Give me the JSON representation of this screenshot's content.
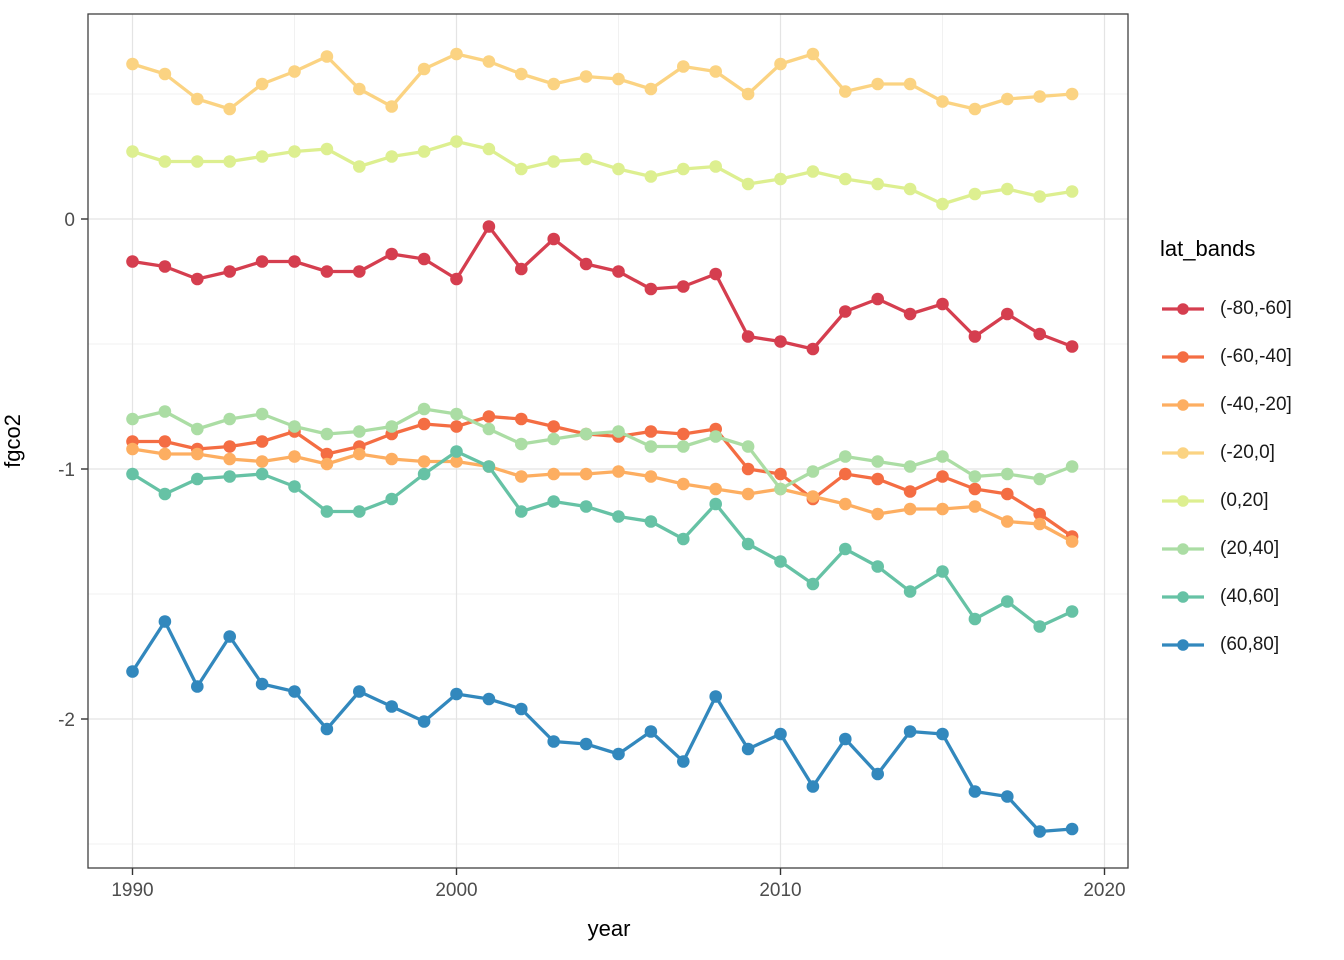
{
  "chart_data": {
    "type": "line",
    "title": "",
    "x_label": "year",
    "y_label": "fgco2",
    "legend_title": "lat_bands",
    "legend_position": "right",
    "grid": true,
    "years": [
      1990,
      1991,
      1992,
      1993,
      1994,
      1995,
      1996,
      1997,
      1998,
      1999,
      2000,
      2001,
      2002,
      2003,
      2004,
      2005,
      2006,
      2007,
      2008,
      2009,
      2010,
      2011,
      2012,
      2013,
      2014,
      2015,
      2016,
      2017,
      2018,
      2019
    ],
    "axis": {
      "x_major": [
        1990,
        2000,
        2010,
        2020
      ],
      "x_minor": [
        1995,
        2005,
        2015
      ],
      "y_major": [
        0,
        -1,
        -2
      ],
      "y_minor": [
        0.5,
        -0.5,
        -1.5,
        -2.5
      ],
      "xlim": [
        1988.6,
        2020.8
      ],
      "ylim": [
        -2.6,
        0.82
      ]
    },
    "series": [
      {
        "name": "(-80,-60]",
        "color": "#d53e4f",
        "values": [
          -0.17,
          -0.19,
          -0.24,
          -0.21,
          -0.17,
          -0.17,
          -0.21,
          -0.21,
          -0.14,
          -0.16,
          -0.24,
          -0.03,
          -0.2,
          -0.08,
          -0.18,
          -0.21,
          -0.28,
          -0.27,
          -0.22,
          -0.47,
          -0.49,
          -0.52,
          -0.37,
          -0.32,
          -0.38,
          -0.34,
          -0.47,
          -0.38,
          -0.46,
          -0.51
        ]
      },
      {
        "name": "(-60,-40]",
        "color": "#f46d43",
        "values": [
          -0.89,
          -0.89,
          -0.92,
          -0.91,
          -0.89,
          -0.85,
          -0.94,
          -0.91,
          -0.86,
          -0.82,
          -0.83,
          -0.79,
          -0.8,
          -0.83,
          -0.86,
          -0.87,
          -0.85,
          -0.86,
          -0.84,
          -1.0,
          -1.02,
          -1.12,
          -1.02,
          -1.04,
          -1.09,
          -1.03,
          -1.08,
          -1.1,
          -1.18,
          -1.27
        ]
      },
      {
        "name": "(-40,-20]",
        "color": "#fdae61",
        "values": [
          -0.92,
          -0.94,
          -0.94,
          -0.96,
          -0.97,
          -0.95,
          -0.98,
          -0.94,
          -0.96,
          -0.97,
          -0.97,
          -0.99,
          -1.03,
          -1.02,
          -1.02,
          -1.01,
          -1.03,
          -1.06,
          -1.08,
          -1.1,
          -1.08,
          -1.11,
          -1.14,
          -1.18,
          -1.16,
          -1.16,
          -1.15,
          -1.21,
          -1.22,
          -1.29
        ]
      },
      {
        "name": "(-20,0]",
        "color": "#fbd382",
        "values": [
          0.62,
          0.58,
          0.48,
          0.44,
          0.54,
          0.59,
          0.65,
          0.52,
          0.45,
          0.6,
          0.66,
          0.63,
          0.58,
          0.54,
          0.57,
          0.56,
          0.52,
          0.61,
          0.59,
          0.5,
          0.62,
          0.66,
          0.51,
          0.54,
          0.54,
          0.47,
          0.44,
          0.48,
          0.49,
          0.5
        ]
      },
      {
        "name": "(0,20]",
        "color": "#ddef90",
        "values": [
          0.27,
          0.23,
          0.23,
          0.23,
          0.25,
          0.27,
          0.28,
          0.21,
          0.25,
          0.27,
          0.31,
          0.28,
          0.2,
          0.23,
          0.24,
          0.2,
          0.17,
          0.2,
          0.21,
          0.14,
          0.16,
          0.19,
          0.16,
          0.14,
          0.12,
          0.06,
          0.1,
          0.12,
          0.09,
          0.11
        ]
      },
      {
        "name": "(20,40]",
        "color": "#abdda4",
        "values": [
          -0.8,
          -0.77,
          -0.84,
          -0.8,
          -0.78,
          -0.83,
          -0.86,
          -0.85,
          -0.83,
          -0.76,
          -0.78,
          -0.84,
          -0.9,
          -0.88,
          -0.86,
          -0.85,
          -0.91,
          -0.91,
          -0.87,
          -0.91,
          -1.08,
          -1.01,
          -0.95,
          -0.97,
          -0.99,
          -0.95,
          -1.03,
          -1.02,
          -1.04,
          -0.99
        ]
      },
      {
        "name": "(40,60]",
        "color": "#66c2a5",
        "values": [
          -1.02,
          -1.1,
          -1.04,
          -1.03,
          -1.02,
          -1.07,
          -1.17,
          -1.17,
          -1.12,
          -1.02,
          -0.93,
          -0.99,
          -1.17,
          -1.13,
          -1.15,
          -1.19,
          -1.21,
          -1.28,
          -1.14,
          -1.3,
          -1.37,
          -1.46,
          -1.32,
          -1.39,
          -1.49,
          -1.41,
          -1.6,
          -1.53,
          -1.63,
          -1.57
        ]
      },
      {
        "name": "(60,80]",
        "color": "#3288bd",
        "values": [
          -1.81,
          -1.61,
          -1.87,
          -1.67,
          -1.86,
          -1.89,
          -2.04,
          -1.89,
          -1.95,
          -2.01,
          -1.9,
          -1.92,
          -1.96,
          -2.09,
          -2.1,
          -2.14,
          -2.05,
          -2.17,
          -1.91,
          -2.12,
          -2.06,
          -2.27,
          -2.08,
          -2.22,
          -2.05,
          -2.06,
          -2.29,
          -2.31,
          -2.45,
          -2.44
        ]
      }
    ]
  }
}
